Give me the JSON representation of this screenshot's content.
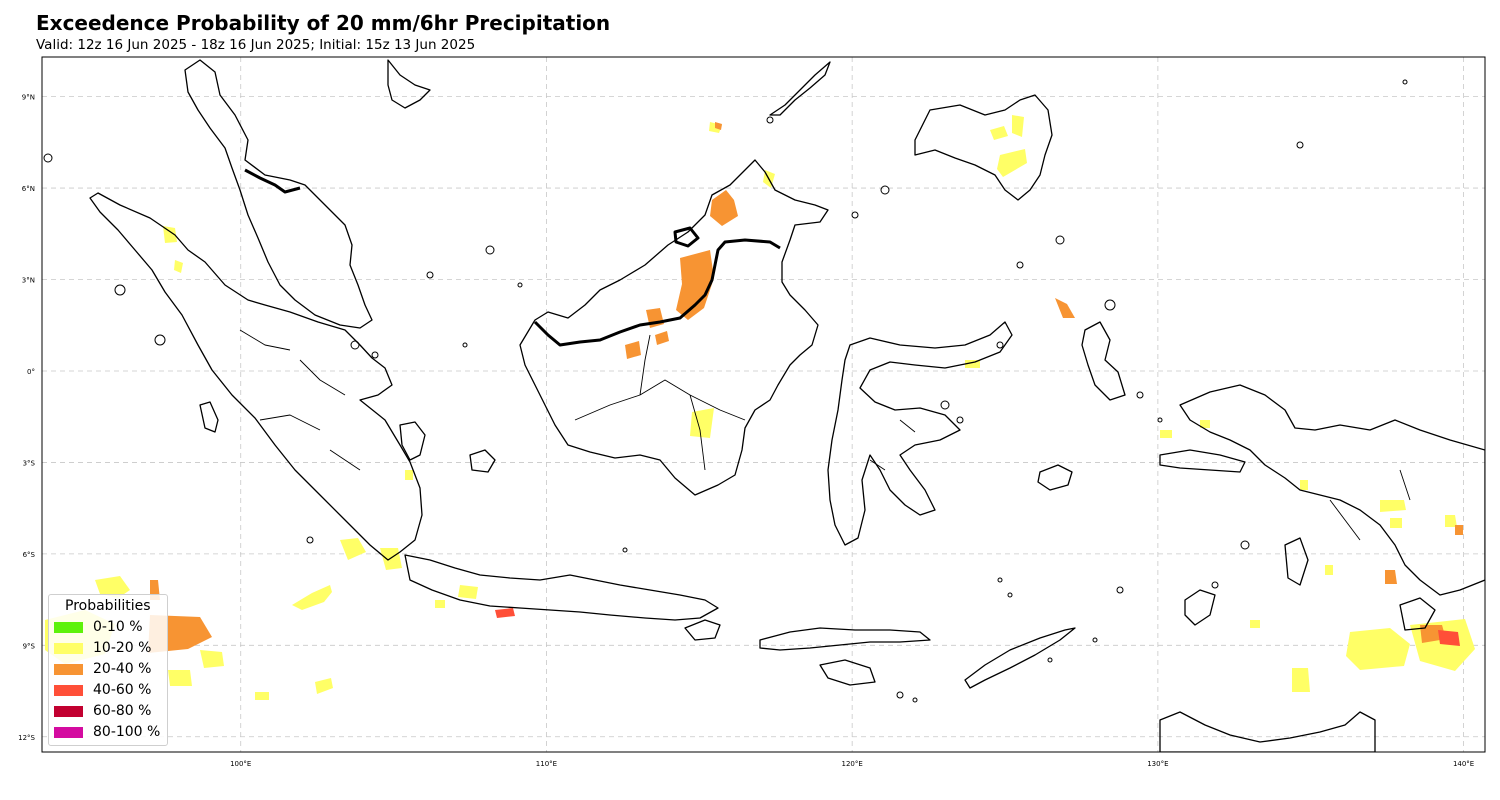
{
  "title": "Exceedence Probability of 20 mm/6hr Precipitation",
  "subtitle": "Valid: 12z 16 Jun 2025 - 18z 16 Jun 2025; Initial: 15z 13 Jun 2025",
  "map": {
    "lon_range": [
      93.5,
      140.7
    ],
    "lat_range": [
      -12.5,
      10.3
    ],
    "lon_ticks": [
      {
        "value": 100,
        "label": "100°E"
      },
      {
        "value": 110,
        "label": "110°E"
      },
      {
        "value": 120,
        "label": "120°E"
      },
      {
        "value": 130,
        "label": "130°E"
      },
      {
        "value": 140,
        "label": "140°E"
      }
    ],
    "lat_ticks": [
      {
        "value": 9,
        "label": "9°N"
      },
      {
        "value": 6,
        "label": "6°N"
      },
      {
        "value": 3,
        "label": "3°N"
      },
      {
        "value": 0,
        "label": "0°"
      },
      {
        "value": -3,
        "label": "3°S"
      },
      {
        "value": -6,
        "label": "6°S"
      },
      {
        "value": -9,
        "label": "9°S"
      },
      {
        "value": -12,
        "label": "12°S"
      }
    ],
    "gridlines": true
  },
  "legend": {
    "title": "Probabilities",
    "placement": "lower-left",
    "items": [
      {
        "label": "0-10 %",
        "color": "#5ef20a"
      },
      {
        "label": "10-20 %",
        "color": "#ffff66"
      },
      {
        "label": "20-40 %",
        "color": "#f79433"
      },
      {
        "label": "40-60 %",
        "color": "#ff4f38"
      },
      {
        "label": "60-80 %",
        "color": "#c20030"
      },
      {
        "label": "80-100 %",
        "color": "#d40ba0"
      }
    ]
  }
}
